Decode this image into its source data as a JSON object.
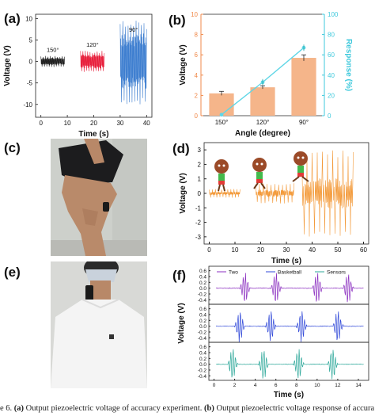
{
  "panels": {
    "a": {
      "label": "(a)"
    },
    "b": {
      "label": "(b)"
    },
    "c": {
      "label": "(c)"
    },
    "d": {
      "label": "(d)"
    },
    "e": {
      "label": "(e)"
    },
    "f": {
      "label": "(f)"
    }
  },
  "caption": {
    "lead": "e 6. ",
    "a_tag": "(a)",
    "a_text": " Output piezoelectric voltage of accuracy experiment. ",
    "b_tag": "(b)",
    "b_text": " Output piezoelectric voltage response of accura"
  },
  "chart_data": [
    {
      "id": "a",
      "type": "line",
      "xlabel": "Time (s)",
      "ylabel": "Voltage (V)",
      "xlim": [
        -2,
        42
      ],
      "ylim": [
        -13,
        11
      ],
      "xticks": [
        "0",
        "10",
        "20",
        "30",
        "40"
      ],
      "xtick_values": [
        0,
        10,
        20,
        30,
        40
      ],
      "yticks": [
        "10",
        "5",
        "0",
        "-5",
        "-10"
      ],
      "ytick_values": [
        10,
        5,
        0,
        -5,
        -10
      ],
      "series": [
        {
          "name": "150°",
          "color": "#222222",
          "x_range": [
            0,
            9
          ],
          "amplitude": 1.3
        },
        {
          "name": "120°",
          "color": "#e8213d",
          "x_range": [
            15,
            24
          ],
          "amplitude": 2.5
        },
        {
          "name": "90°",
          "color": "#3f7fd0",
          "x_range": [
            30,
            40
          ],
          "amplitude": 10
        }
      ],
      "annotations": [
        "150°",
        "120°",
        "90°"
      ]
    },
    {
      "id": "b",
      "type": "bar",
      "categories": [
        "150°",
        "120°",
        "90°"
      ],
      "xlabel": "Angle (degree)",
      "ylabel": "Voltage (V)",
      "y2label": "Response (%)",
      "ylim": [
        0,
        10
      ],
      "y2lim": [
        0,
        100
      ],
      "yticks": [
        "0",
        "2",
        "4",
        "6",
        "8",
        "10"
      ],
      "y2ticks": [
        "0",
        "20",
        "40",
        "60",
        "80",
        "100"
      ],
      "series": [
        {
          "type": "bar",
          "values": [
            2.2,
            2.8,
            5.7
          ],
          "errors": [
            0.2,
            0.15,
            0.3
          ],
          "color": "#f5b58a"
        },
        {
          "type": "line",
          "values": [
            1,
            33,
            67
          ],
          "errors": [
            0,
            2,
            2
          ],
          "color": "#5fd6e6"
        }
      ]
    },
    {
      "id": "d",
      "type": "line",
      "xlabel": "Time (s)",
      "ylabel": "Voltage (V)",
      "xlim": [
        -2,
        62
      ],
      "ylim": [
        -3.5,
        3.5
      ],
      "xticks": [
        "0",
        "10",
        "20",
        "30",
        "40",
        "50",
        "60"
      ],
      "xtick_values": [
        0,
        10,
        20,
        30,
        40,
        50,
        60
      ],
      "yticks": [
        "3",
        "2",
        "1",
        "0",
        "-1",
        "-2",
        "-3"
      ],
      "ytick_values": [
        3,
        2,
        1,
        0,
        -1,
        -2,
        -3
      ],
      "series": [
        {
          "color": "#f39a3a",
          "x_range": [
            0,
            12
          ],
          "amplitude": 0.3
        },
        {
          "color": "#f39a3a",
          "x_range": [
            18,
            33
          ],
          "amplitude": 0.7
        },
        {
          "color": "#f39a3a",
          "x_range": [
            36,
            56
          ],
          "amplitude": 3
        }
      ]
    },
    {
      "id": "f",
      "type": "line",
      "xlabel": "Time (s)",
      "ylabel": "Voltage (V)",
      "xticks": [
        "0",
        "2",
        "4",
        "6",
        "8",
        "10",
        "12",
        "14"
      ],
      "xtick_values": [
        0,
        2,
        4,
        6,
        8,
        10,
        12,
        14
      ],
      "yticks": [
        "0.6",
        "0.4",
        "0.2",
        "0.0",
        "-0.2",
        "-0.4"
      ],
      "ytick_values": [
        0.6,
        0.4,
        0.2,
        0.0,
        -0.2,
        -0.4
      ],
      "xlim": [
        -0.5,
        15
      ],
      "ylim": [
        -0.5,
        0.7
      ],
      "series": [
        {
          "name": "Two",
          "color": "#8b2fc0",
          "peaks": [
            3,
            6,
            10,
            13
          ]
        },
        {
          "name": "Basketball",
          "color": "#3048d8",
          "peaks": [
            2.5,
            5.5,
            8.5,
            12
          ]
        },
        {
          "name": "Sensors",
          "color": "#2ea89a",
          "peaks": [
            1.8,
            4.8,
            8.2,
            11.5
          ]
        }
      ]
    }
  ],
  "colors": {
    "skin": "#b98a6a",
    "shirt": "#f4f4f4",
    "wall": "#cfd0cd",
    "shorts": "#1c1c1e"
  }
}
